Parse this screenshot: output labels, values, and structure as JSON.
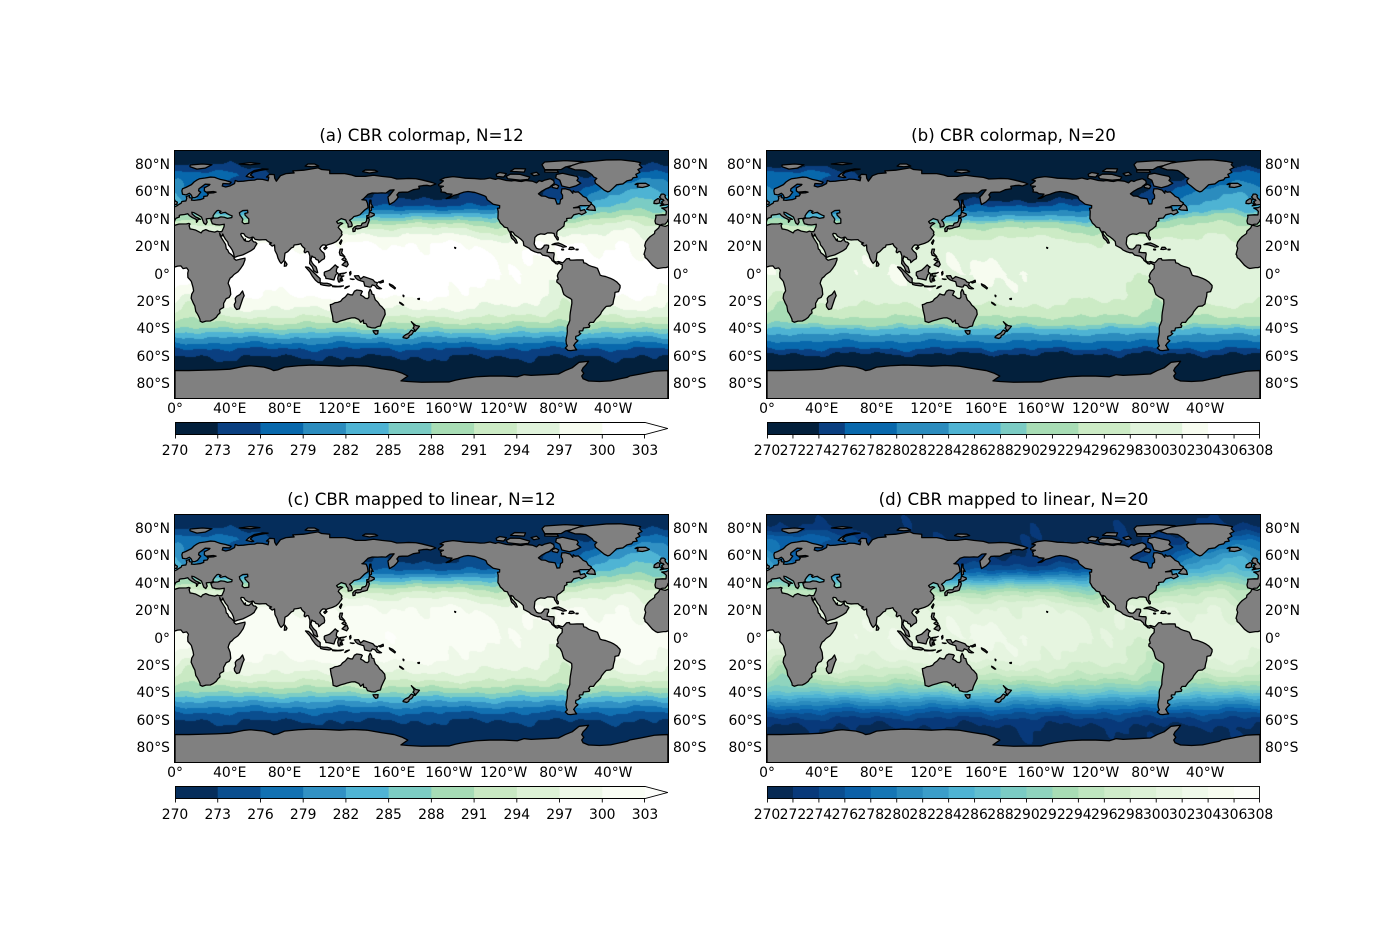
{
  "figure": {
    "background": "#ffffff",
    "land_color": "#808080",
    "coastline_color": "#000000",
    "frame_color": "#000000"
  },
  "chart_data": [
    {
      "panel": "a",
      "type": "heatmap",
      "subtype": "filled contour map (Plate Carree)",
      "title": "(a) CBR colormap, N=12",
      "xlim": [
        0,
        360
      ],
      "ylim": [
        -90,
        90
      ],
      "grid": false,
      "x_ticks": [
        {
          "value": 0,
          "label": "0°"
        },
        {
          "value": 40,
          "label": "40°E"
        },
        {
          "value": 80,
          "label": "80°E"
        },
        {
          "value": 120,
          "label": "120°E"
        },
        {
          "value": 160,
          "label": "160°E"
        },
        {
          "value": 200,
          "label": "160°W"
        },
        {
          "value": 240,
          "label": "120°W"
        },
        {
          "value": 280,
          "label": "80°W"
        },
        {
          "value": 320,
          "label": "40°W"
        }
      ],
      "y_ticks": [
        {
          "value": 80,
          "label": "80°N"
        },
        {
          "value": 60,
          "label": "60°N"
        },
        {
          "value": 40,
          "label": "40°N"
        },
        {
          "value": 20,
          "label": "20°N"
        },
        {
          "value": 0,
          "label": "0°"
        },
        {
          "value": -20,
          "label": "20°S"
        },
        {
          "value": -40,
          "label": "40°S"
        },
        {
          "value": -60,
          "label": "60°S"
        },
        {
          "value": -80,
          "label": "80°S"
        }
      ],
      "colorbar": {
        "orientation": "horizontal",
        "levels": [
          270,
          273,
          276,
          279,
          282,
          285,
          288,
          291,
          294,
          297,
          300,
          303
        ],
        "tick_labels": [
          "270",
          "273",
          "276",
          "279",
          "282",
          "285",
          "288",
          "291",
          "294",
          "297",
          "300",
          "303"
        ],
        "colors": [
          "#03203c",
          "#0a3f80",
          "#0868ac",
          "#2b8cbe",
          "#4eb3d3",
          "#7bccc4",
          "#a8ddb5",
          "#ccebc5",
          "#e0f3db",
          "#f7fcf0",
          "#ffffff"
        ],
        "extend": "max",
        "extend_color": "#ffffff"
      }
    },
    {
      "panel": "b",
      "type": "heatmap",
      "subtype": "filled contour map (Plate Carree)",
      "title": "(b) CBR colormap, N=20",
      "xlim": [
        0,
        360
      ],
      "ylim": [
        -90,
        90
      ],
      "grid": false,
      "x_ticks": [
        {
          "value": 0,
          "label": "0°"
        },
        {
          "value": 40,
          "label": "40°E"
        },
        {
          "value": 80,
          "label": "80°E"
        },
        {
          "value": 120,
          "label": "120°E"
        },
        {
          "value": 160,
          "label": "160°E"
        },
        {
          "value": 200,
          "label": "160°W"
        },
        {
          "value": 240,
          "label": "120°W"
        },
        {
          "value": 280,
          "label": "80°W"
        },
        {
          "value": 320,
          "label": "40°W"
        }
      ],
      "y_ticks": [
        {
          "value": 80,
          "label": "80°N"
        },
        {
          "value": 60,
          "label": "60°N"
        },
        {
          "value": 40,
          "label": "40°N"
        },
        {
          "value": 20,
          "label": "20°N"
        },
        {
          "value": 0,
          "label": "0°"
        },
        {
          "value": -20,
          "label": "20°S"
        },
        {
          "value": -40,
          "label": "40°S"
        },
        {
          "value": -60,
          "label": "60°S"
        },
        {
          "value": -80,
          "label": "80°S"
        }
      ],
      "colorbar": {
        "orientation": "horizontal",
        "levels": [
          270,
          272,
          274,
          276,
          278,
          280,
          282,
          284,
          286,
          288,
          290,
          292,
          294,
          296,
          298,
          300,
          302,
          304,
          306,
          308
        ],
        "tick_labels": [
          "270",
          "272",
          "274",
          "276",
          "278",
          "280",
          "282",
          "284",
          "286",
          "288",
          "290",
          "292",
          "294",
          "296",
          "298",
          "300",
          "302",
          "304",
          "306",
          "308"
        ],
        "colors": [
          "#03203c",
          "#03203c",
          "#0a3f80",
          "#0868ac",
          "#0868ac",
          "#2b8cbe",
          "#2b8cbe",
          "#4eb3d3",
          "#4eb3d3",
          "#7bccc4",
          "#a8ddb5",
          "#a8ddb5",
          "#ccebc5",
          "#ccebc5",
          "#e0f3db",
          "#e0f3db",
          "#f7fcf0",
          "#ffffff",
          "#ffffff"
        ],
        "extend": "neither",
        "extend_color": null
      }
    },
    {
      "panel": "c",
      "type": "heatmap",
      "subtype": "filled contour map (Plate Carree)",
      "title": "(c) CBR mapped to linear, N=12",
      "xlim": [
        0,
        360
      ],
      "ylim": [
        -90,
        90
      ],
      "grid": false,
      "x_ticks": [
        {
          "value": 0,
          "label": "0°"
        },
        {
          "value": 40,
          "label": "40°E"
        },
        {
          "value": 80,
          "label": "80°E"
        },
        {
          "value": 120,
          "label": "120°E"
        },
        {
          "value": 160,
          "label": "160°E"
        },
        {
          "value": 200,
          "label": "160°W"
        },
        {
          "value": 240,
          "label": "120°W"
        },
        {
          "value": 280,
          "label": "80°W"
        },
        {
          "value": 320,
          "label": "40°W"
        }
      ],
      "y_ticks": [
        {
          "value": 80,
          "label": "80°N"
        },
        {
          "value": 60,
          "label": "60°N"
        },
        {
          "value": 40,
          "label": "40°N"
        },
        {
          "value": 20,
          "label": "20°N"
        },
        {
          "value": 0,
          "label": "0°"
        },
        {
          "value": -20,
          "label": "20°S"
        },
        {
          "value": -40,
          "label": "40°S"
        },
        {
          "value": -60,
          "label": "60°S"
        },
        {
          "value": -80,
          "label": "80°S"
        }
      ],
      "colorbar": {
        "orientation": "horizontal",
        "levels": [
          270,
          273,
          276,
          279,
          282,
          285,
          288,
          291,
          294,
          297,
          300,
          303
        ],
        "tick_labels": [
          "270",
          "273",
          "276",
          "279",
          "282",
          "285",
          "288",
          "291",
          "294",
          "297",
          "300",
          "303"
        ],
        "colors": [
          "#052d5b",
          "#0a4e8f",
          "#1271b2",
          "#3191c4",
          "#4fb4d4",
          "#7ccdc4",
          "#a6dcb6",
          "#c9e9c3",
          "#ddf2d6",
          "#eef8e8",
          "#f9fdf4"
        ],
        "extend": "max",
        "extend_color": "#fdfefb"
      }
    },
    {
      "panel": "d",
      "type": "heatmap",
      "subtype": "filled contour map (Plate Carree)",
      "title": "(d) CBR mapped to linear, N=20",
      "xlim": [
        0,
        360
      ],
      "ylim": [
        -90,
        90
      ],
      "grid": false,
      "x_ticks": [
        {
          "value": 0,
          "label": "0°"
        },
        {
          "value": 40,
          "label": "40°E"
        },
        {
          "value": 80,
          "label": "80°E"
        },
        {
          "value": 120,
          "label": "120°E"
        },
        {
          "value": 160,
          "label": "160°E"
        },
        {
          "value": 200,
          "label": "160°W"
        },
        {
          "value": 240,
          "label": "120°W"
        },
        {
          "value": 280,
          "label": "80°W"
        },
        {
          "value": 320,
          "label": "40°W"
        }
      ],
      "y_ticks": [
        {
          "value": 80,
          "label": "80°N"
        },
        {
          "value": 60,
          "label": "60°N"
        },
        {
          "value": 40,
          "label": "40°N"
        },
        {
          "value": 20,
          "label": "20°N"
        },
        {
          "value": 0,
          "label": "0°"
        },
        {
          "value": -20,
          "label": "20°S"
        },
        {
          "value": -40,
          "label": "40°S"
        },
        {
          "value": -60,
          "label": "60°S"
        },
        {
          "value": -80,
          "label": "80°S"
        }
      ],
      "colorbar": {
        "orientation": "horizontal",
        "levels": [
          270,
          272,
          274,
          276,
          278,
          280,
          282,
          284,
          286,
          288,
          290,
          292,
          294,
          296,
          298,
          300,
          302,
          304,
          306,
          308
        ],
        "tick_labels": [
          "270",
          "272",
          "274",
          "276",
          "278",
          "280",
          "282",
          "284",
          "286",
          "288",
          "290",
          "292",
          "294",
          "296",
          "298",
          "300",
          "302",
          "304",
          "306",
          "308"
        ],
        "colors": [
          "#072a54",
          "#08397a",
          "#0a4d8f",
          "#0b60a8",
          "#1576b5",
          "#2a8bbe",
          "#3a9dc9",
          "#4eb3d3",
          "#62bfcf",
          "#7bccc4",
          "#8fd4be",
          "#a8ddb5",
          "#bfe6c0",
          "#cfecca",
          "#dcf1d6",
          "#e6f5e0",
          "#eff9ea",
          "#f7fcf0",
          "#fbfdf8"
        ],
        "extend": "neither",
        "extend_color": null
      }
    }
  ]
}
